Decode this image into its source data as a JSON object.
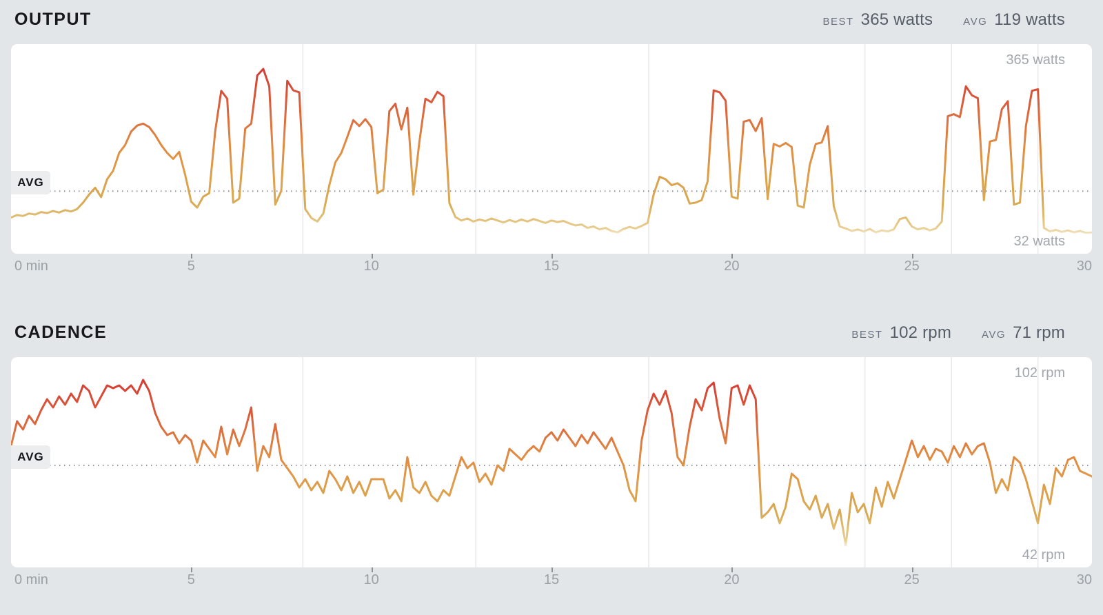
{
  "page": {
    "background_color": "#e3e6e8",
    "panel_color": "#ffffff"
  },
  "style": {
    "grid_color": "#e8e9eb",
    "avg_line_color": "#8f949b",
    "tick_color": "#8b9197",
    "axis_label_color": "#99a0a6",
    "title_color": "#17191d",
    "stat_value_color": "#555d69",
    "stat_label_color": "#6a7280",
    "avg_badge_bg": "#ecedef",
    "line_gradient": [
      {
        "offset": 0.0,
        "color": "#d53c33"
      },
      {
        "offset": 0.22,
        "color": "#d95f3c"
      },
      {
        "offset": 0.45,
        "color": "#e08a42"
      },
      {
        "offset": 0.65,
        "color": "#dd9f4a"
      },
      {
        "offset": 0.82,
        "color": "#d8ab55"
      },
      {
        "offset": 0.965,
        "color": "#e8cf94"
      },
      {
        "offset": 1.0,
        "color": "#f2e8cd"
      }
    ]
  },
  "charts": [
    {
      "title": "OUTPUT",
      "best_label": "BEST",
      "best_value": "365 watts",
      "avg_label": "AVG",
      "avg_value": "119 watts",
      "avg_badge": "AVG",
      "y_max_label": "365 watts",
      "y_min_label": "32 watts",
      "x_labels": [
        "0 min",
        "5",
        "10",
        "15",
        "20",
        "25",
        "30"
      ],
      "chart_data": {
        "type": "line",
        "name": "Output",
        "unit": "watts",
        "x_unit": "min",
        "x_range": [
          0,
          30
        ],
        "x_ticks_min": [
          0,
          5,
          10,
          15,
          20,
          25,
          30
        ],
        "sample_interval_s": 10,
        "ylim": [
          32,
          365
        ],
        "avg": 119,
        "best": 365,
        "grid": "vertical-segment-lines",
        "legend": "none",
        "segment_gridlines_min": [
          8.1,
          12.9,
          17.7,
          23.7,
          26.1,
          28.5
        ],
        "values": [
          66,
          71,
          69,
          74,
          72,
          77,
          75,
          79,
          76,
          81,
          78,
          83,
          96,
          112,
          126,
          107,
          143,
          160,
          196,
          212,
          239,
          251,
          255,
          248,
          232,
          212,
          196,
          184,
          198,
          152,
          98,
          86,
          108,
          115,
          240,
          321,
          305,
          96,
          104,
          245,
          255,
          352,
          365,
          330,
          92,
          120,
          341,
          322,
          318,
          83,
          65,
          58,
          74,
          131,
          177,
          196,
          228,
          262,
          250,
          264,
          248,
          115,
          122,
          280,
          295,
          243,
          287,
          112,
          219,
          305,
          298,
          319,
          310,
          95,
          67,
          60,
          64,
          58,
          62,
          59,
          64,
          60,
          56,
          61,
          57,
          62,
          58,
          63,
          59,
          55,
          60,
          57,
          59,
          54,
          50,
          52,
          45,
          48,
          42,
          45,
          39,
          36,
          43,
          47,
          44,
          49,
          55,
          112,
          148,
          143,
          131,
          135,
          126,
          94,
          96,
          101,
          139,
          322,
          318,
          301,
          108,
          104,
          259,
          262,
          240,
          266,
          103,
          214,
          209,
          216,
          208,
          90,
          86,
          172,
          214,
          217,
          250,
          89,
          48,
          44,
          39,
          42,
          38,
          43,
          36,
          40,
          38,
          42,
          63,
          66,
          48,
          42,
          45,
          40,
          44,
          58,
          270,
          274,
          268,
          330,
          312,
          306,
          101,
          219,
          222,
          284,
          300,
          92,
          96,
          250,
          321,
          324,
          45,
          38,
          41,
          37,
          40,
          36,
          39,
          35,
          36
        ]
      }
    },
    {
      "title": "CADENCE",
      "best_label": "BEST",
      "best_value": "102 rpm",
      "avg_label": "AVG",
      "avg_value": "71 rpm",
      "avg_badge": "AVG",
      "y_max_label": "102 rpm",
      "y_min_label": "42 rpm",
      "x_labels": [
        "0 min",
        "5",
        "10",
        "15",
        "20",
        "25",
        "30"
      ],
      "chart_data": {
        "type": "line",
        "name": "Cadence",
        "unit": "rpm",
        "x_unit": "min",
        "x_range": [
          0,
          30
        ],
        "x_ticks_min": [
          0,
          5,
          10,
          15,
          20,
          25,
          30
        ],
        "sample_interval_s": 10,
        "ylim": [
          42,
          102
        ],
        "avg": 71,
        "best": 102,
        "grid": "vertical-segment-lines",
        "legend": "none",
        "segment_gridlines_min": [
          8.1,
          12.9,
          17.7,
          23.7,
          26.1,
          28.5
        ],
        "values": [
          78,
          87,
          84,
          89,
          86,
          91,
          95,
          92,
          96,
          93,
          97,
          94,
          100,
          98,
          92,
          96,
          100,
          99,
          100,
          98,
          100,
          97,
          102,
          98,
          90,
          85,
          82,
          83,
          79,
          82,
          80,
          72,
          80,
          77,
          74,
          85,
          75,
          84,
          78,
          84,
          92,
          69,
          78,
          74,
          86,
          73,
          70,
          67,
          63,
          66,
          62,
          65,
          61,
          69,
          66,
          62,
          67,
          61,
          65,
          60,
          66,
          66,
          66,
          59,
          62,
          58,
          74,
          63,
          61,
          65,
          60,
          58,
          62,
          60,
          67,
          74,
          70,
          72,
          65,
          68,
          64,
          71,
          69,
          77,
          75,
          73,
          76,
          78,
          76,
          81,
          83,
          80,
          84,
          81,
          78,
          82,
          79,
          83,
          80,
          77,
          81,
          76,
          71,
          62,
          58,
          80,
          91,
          97,
          93,
          98,
          90,
          74,
          71,
          85,
          95,
          91,
          99,
          101,
          88,
          79,
          99,
          100,
          93,
          100,
          95,
          52,
          54,
          57,
          50,
          56,
          68,
          66,
          58,
          55,
          60,
          52,
          57,
          48,
          55,
          42,
          61,
          54,
          57,
          50,
          63,
          56,
          65,
          59,
          66,
          73,
          80,
          74,
          78,
          73,
          77,
          76,
          72,
          78,
          74,
          79,
          75,
          78,
          79,
          72,
          61,
          66,
          62,
          74,
          72,
          66,
          58,
          50,
          64,
          57,
          70,
          67,
          73,
          74,
          69,
          68,
          67
        ]
      }
    }
  ]
}
